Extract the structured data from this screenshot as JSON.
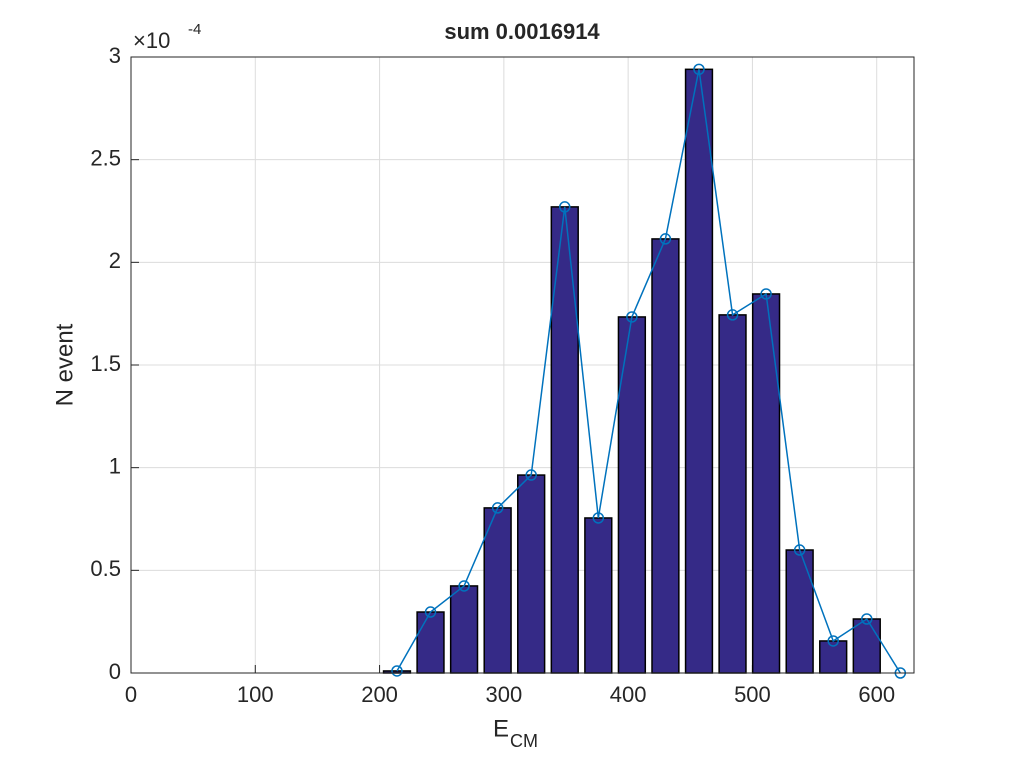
{
  "chart_data": {
    "type": "bar",
    "title": "sum 0.0016914",
    "ylabel": "N event",
    "xlabel": "E",
    "xlabel_subscript": "CM",
    "y_multiplier": {
      "base": "×10",
      "exponent": "-4"
    },
    "x": [
      214,
      241,
      268,
      295,
      322,
      349,
      376,
      403,
      430,
      457,
      484,
      511,
      538,
      565,
      592,
      619
    ],
    "values": [
      0.01,
      0.297,
      0.424,
      0.804,
      0.964,
      2.27,
      0.755,
      1.734,
      2.114,
      2.94,
      1.744,
      1.846,
      0.599,
      0.156,
      0.263,
      0
    ],
    "bar_color": "#352a87",
    "line_color": "#0072bd",
    "marker": "circle",
    "xlim": [
      0,
      630
    ],
    "ylim": [
      0,
      3
    ],
    "xticks": [
      0,
      100,
      200,
      300,
      400,
      500,
      600
    ],
    "yticks": [
      0,
      0.5,
      1,
      1.5,
      2,
      2.5,
      3
    ],
    "grid": true
  }
}
